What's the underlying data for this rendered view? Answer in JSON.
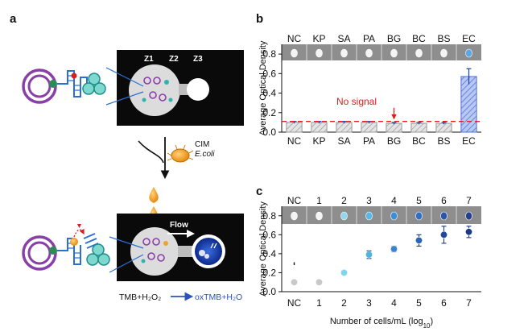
{
  "panel_a": {
    "label": "a",
    "zones": [
      "Z1",
      "Z2",
      "Z3"
    ],
    "cim_label": "CIM",
    "ecoli_label": "E.coli",
    "flow_label": "Flow",
    "reaction_left": "TMB+H₂O₂",
    "reaction_right": "oxTMB+H₂O",
    "colors": {
      "arrow_blue": "#2a52be",
      "purple": "#8a3fa8",
      "green": "#2e8b57",
      "teal": "#2fb3b0",
      "orange": "#f0a030",
      "red": "#d62020"
    }
  },
  "panel_b": {
    "label": "b",
    "no_signal_label": "No signal",
    "threshold_color": "#e02020"
  },
  "panel_c": {
    "label": "c"
  },
  "chart_data": [
    {
      "type": "bar",
      "panel": "b",
      "categories": [
        "NC",
        "KP",
        "SA",
        "PA",
        "BG",
        "BC",
        "BS",
        "EC"
      ],
      "top_labels": [
        "NC",
        "KP",
        "SA",
        "PA",
        "BG",
        "BC",
        "BS",
        "EC"
      ],
      "values": [
        0.1,
        0.1,
        0.1,
        0.1,
        0.09,
        0.09,
        0.09,
        0.57
      ],
      "errors": [
        0.01,
        0.01,
        0.01,
        0.01,
        0.01,
        0.01,
        0.01,
        0.08
      ],
      "threshold": 0.11,
      "ylabel": "Average Optical Density",
      "xlabel": "",
      "ylim": [
        0,
        0.9
      ],
      "yticks": [
        "0.0",
        "0.2",
        "0.4",
        "0.6",
        "0.8"
      ],
      "bar_colors": [
        "#cccccc",
        "#cccccc",
        "#cccccc",
        "#cccccc",
        "#cccccc",
        "#cccccc",
        "#cccccc",
        "#7b96e8"
      ]
    },
    {
      "type": "scatter",
      "panel": "c",
      "categories": [
        "NC",
        "1",
        "2",
        "3",
        "4",
        "5",
        "6",
        "7"
      ],
      "top_labels": [
        "NC",
        "1",
        "2",
        "3",
        "4",
        "5",
        "6",
        "7"
      ],
      "values": [
        0.1,
        0.1,
        0.2,
        0.39,
        0.45,
        0.54,
        0.6,
        0.63
      ],
      "errors": [
        0.0,
        0.0,
        0.0,
        0.04,
        0.03,
        0.06,
        0.09,
        0.06
      ],
      "point_colors": [
        "#c8c8c8",
        "#c8c8c8",
        "#7fd6ec",
        "#4fb3e0",
        "#3a85cf",
        "#2c62b8",
        "#23479a",
        "#1c3a84"
      ],
      "ylabel": "Average Optical Density",
      "xlabel": "Number of cells/mL (log10)",
      "ylim": [
        0,
        0.9
      ],
      "yticks": [
        "0.0",
        "0.2",
        "0.4",
        "0.6",
        "0.8"
      ]
    }
  ]
}
